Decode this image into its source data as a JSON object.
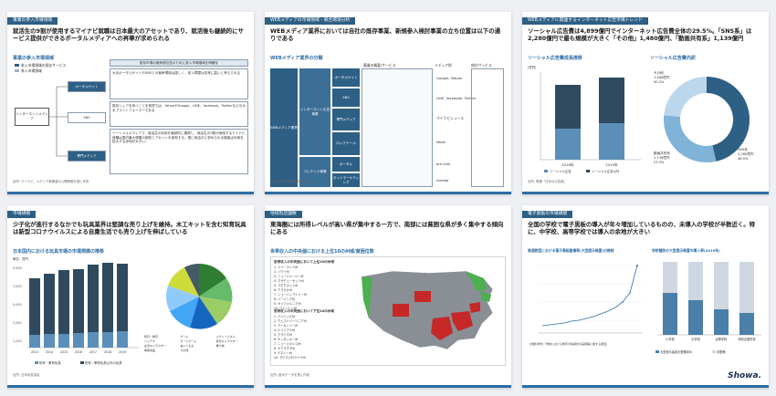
{
  "s1": {
    "tag": "事業の参入市場領域",
    "lead": "就活生の9割が使用するマイナビ就職は日本最大のアセットであり、就活後も継続的にサービス提供ができるポータルメディアへの昇華が求められる",
    "sub": "事業の参入市場領域",
    "legend": [
      "参入市場領域の既存サービス",
      "参入市場領域"
    ],
    "root": "インターネットメディア",
    "nodes": [
      "ポータルサイト",
      "SNS",
      "専門メディア"
    ],
    "colhead": "既存市場の競争優位性のために参入市場領域を明確化",
    "desc": [
      "大手ポータルサイトやSNSとの競争環境は激しく、参入障壁は非常に高いと考えられる",
      "既存シェアを持つことを前提では、YahooやGoogle、LINE、facebook、Twitterなどの大手プラットフォーマーである",
      "ソーシャルメディアで、就活生の利用を継続的に獲得し、就活生の9割が使用するマイナビ就職は国内最大規模の認知とアセットを保有する。更に就活中に求められる機能は利用を拡大する余地が大きい。"
    ],
    "foot": "出所: マイナビ、メディア事業者の公開情報を基に作成"
  },
  "s2": {
    "tag": "WEBメディアの市場領域・競合環境分析",
    "lead": "WEBメディア業界においては自社の既存事業、新規参入検討事業の立ち位置は以下の通りである",
    "sub": "WEBメディア業界の分類",
    "left": "WEBメディア業界",
    "mid": [
      "インターネット広告事業",
      "コンテンツ事業"
    ],
    "mid2": [
      "ポータルサイト",
      "SNS",
      "専門メディア",
      "ロングテール",
      "ポータル",
      "ネットマーケティング"
    ],
    "colheads": [
      "事業の概要/サービス",
      "メディア例",
      "他社サービス"
    ],
    "media": [
      "Google, Yahoo!",
      "LINE, facebook, Twitter",
      "マイナビニュース",
      "Wow!",
      "am.com",
      "Ameba"
    ],
    "foot": "出所: 各種公開情報を基に作成"
  },
  "s3": {
    "tag": "WEBメディアに関連するインターネット広告市場トレンド",
    "lead": "ソーシャル広告費は4,899億円でインターネット広告費全体の29.5%。「SNS系」は2,280億円で最も規模が大きく「その他」1,480億円、「動画共有系」1,139億円",
    "sub1": "ソーシャル広告費成長推移",
    "sub2": "ソーシャル広告費内訳",
    "unit": "(億円)",
    "legend": [
      "ソーシャル広告",
      "ソーシャル広告以外"
    ],
    "foot": "出所: 電通「日本の広告費」"
  },
  "s4": {
    "tag": "市場規模",
    "lead": "少子化が進行するなかでも玩具業界は堅調な売り上げを維持。木工キットを含む知育玩具は新型コロナウイルスによる自粛生活でも売り上げを伸ばしている",
    "sub": "日本国内における玩具市場の市場規模の推移",
    "unit": "単位：億円",
    "legend": [
      "知育・教育玩具",
      "知育・教育玩具以外の玩具"
    ],
    "pie_legend": [
      "知育・教育",
      "ゲーム",
      "ジグソーパズル",
      "ハイテク",
      "カードゲーム",
      "男児キャラクター",
      "女児キャラクター",
      "ぬいぐるみ",
      "乗り物",
      "季節商品",
      "その他"
    ],
    "foot": "出所: 日本玩具協会"
  },
  "s5": {
    "tag": "地域別店舗数",
    "lead": "東海圏には所得レベルが高い県が集中する一方で、南部には貧困な県が多く集中する傾向にある",
    "sub": "世帯収入の中央値における上位10の州域/貧困位数",
    "top_title": "世帯収入の中央値において上位10の州域",
    "top": [
      "1. メリーランド州",
      "2. ハワイ州",
      "3. ニュージャージー州",
      "4. マサチューセッツ州",
      "5. コネチカット州",
      "6. アラスカ州",
      "7. ニューハンプシャー州",
      "8. バージニア州",
      "9. カリフォルニア州",
      "10. ワシントン州"
    ],
    "bottom_title": "世帯収入の中央値において下位10の州域",
    "bottom": [
      "1. ミシシッピ州",
      "2. ウェストバージニア州",
      "3. アーカンソー州",
      "4. ルイジアナ州",
      "5. アラバマ州",
      "6. ケンタッキー州",
      "7. ニューメキシコ州",
      "8. オクラホマ州",
      "9. テネシー州",
      "10. サウスカロライナ州"
    ],
    "foot": "出所: 各州データを基に作成"
  },
  "s6": {
    "tag": "電子黒板の市場規模",
    "lead": "全国の学校で電子黒板の導入が年々増加しているものの、未導入の学校が半数近く。特に、中学校、高等学校では導入の余地が大きい",
    "sub1": "普通教室における電子黒板整備率(大型提示装置)の推移",
    "sub2": "学校種別の大型提示装置の導入率(2019年)",
    "legend": [
      "大型提示装置を整備済み",
      "未整備"
    ],
    "cats": [
      "小学校",
      "中学校",
      "高等学校",
      "特別支援学校"
    ],
    "note": "文部科学省「学校における教育の情報化の実態等に関する調査」",
    "logo": "Showa."
  }
}
